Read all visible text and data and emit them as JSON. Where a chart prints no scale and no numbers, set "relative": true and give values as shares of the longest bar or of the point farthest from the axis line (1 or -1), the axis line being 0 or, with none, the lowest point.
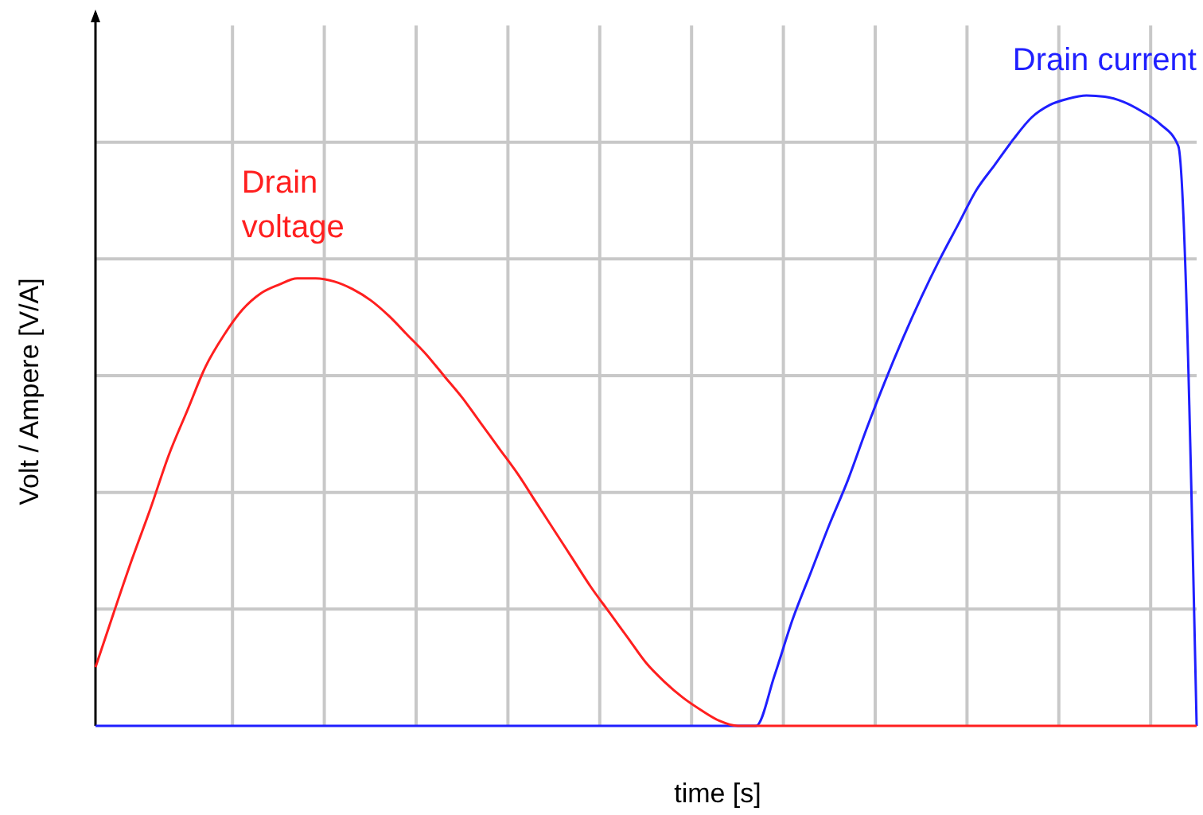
{
  "chart_data": {
    "type": "line",
    "relative": true,
    "xlabel": "time [s]",
    "ylabel": "Volt / Ampere [V/A]",
    "grid": true,
    "line_style": "solid",
    "categories": [
      null,
      null,
      null,
      null,
      null,
      null,
      null,
      null,
      null,
      null,
      null,
      null,
      null,
      null,
      null,
      null,
      null,
      null,
      null,
      null,
      null,
      null,
      null,
      null,
      null,
      null,
      null,
      null,
      null,
      null,
      null,
      null,
      null,
      null,
      null,
      null,
      null,
      null,
      null,
      null,
      null,
      null,
      null,
      null,
      null,
      null,
      null,
      null,
      null,
      null,
      null,
      null,
      null,
      null,
      null,
      null,
      null,
      null,
      null,
      null,
      null
    ],
    "series": [
      {
        "name": "Drain current",
        "color": "#1f1fff",
        "values": [
          0,
          0,
          0,
          0,
          0,
          0,
          0,
          0,
          0,
          0,
          0,
          0,
          0,
          0,
          0,
          0,
          0,
          0,
          0,
          0,
          0,
          0,
          0,
          0,
          0,
          0,
          0,
          0,
          0,
          0,
          0,
          0,
          0,
          0,
          0,
          0,
          0,
          0.08,
          0.17,
          0.245,
          0.32,
          0.39,
          0.47,
          0.545,
          0.615,
          0.68,
          0.74,
          0.795,
          0.85,
          0.89,
          0.93,
          0.965,
          0.985,
          0.995,
          1.0,
          0.998,
          0.99,
          0.975,
          0.955,
          0.92,
          0
        ]
      },
      {
        "name": "Drain voltage",
        "color": "#ff1f1f",
        "values": [
          0.093,
          0.18,
          0.265,
          0.345,
          0.43,
          0.5,
          0.57,
          0.62,
          0.66,
          0.686,
          0.7,
          0.71,
          0.71,
          0.705,
          0.693,
          0.675,
          0.65,
          0.62,
          0.59,
          0.555,
          0.52,
          0.48,
          0.44,
          0.4,
          0.355,
          0.31,
          0.265,
          0.22,
          0.18,
          0.14,
          0.1,
          0.07,
          0.045,
          0.025,
          0.008,
          0,
          0,
          0,
          0,
          0,
          0,
          0,
          0,
          0,
          0,
          0,
          0,
          0,
          0,
          0,
          0,
          0,
          0,
          0,
          0,
          0,
          0,
          0,
          0,
          0,
          0
        ]
      }
    ]
  }
}
